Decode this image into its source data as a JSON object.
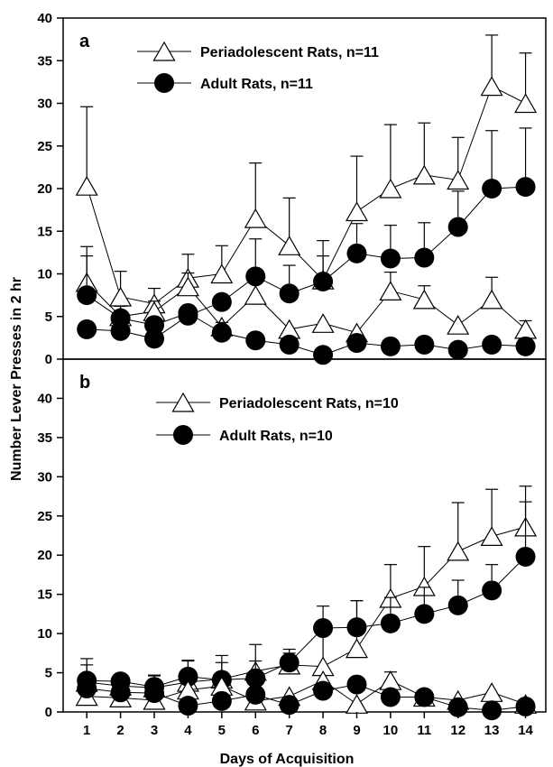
{
  "figure": {
    "y_axis_label": "Number Lever Presses in 2 hr",
    "x_axis_label": "Days of Acquisition"
  },
  "chart_data": [
    {
      "type": "line",
      "panel_label": "a",
      "x": [
        1,
        2,
        3,
        4,
        5,
        6,
        7,
        8,
        9,
        10,
        11,
        12,
        13,
        14
      ],
      "xlim": [
        0.3,
        14.6
      ],
      "ylim": [
        0,
        40
      ],
      "yticks": [
        0,
        5,
        10,
        15,
        20,
        25,
        30,
        35,
        40
      ],
      "legend_position": "top-left",
      "series": [
        {
          "name": "Periadolescent Rats, n=11",
          "marker": "open-triangle",
          "values": [
            20.3,
            7.3,
            6.5,
            9.5,
            10.0,
            16.5,
            13.3,
            9.3,
            17.3,
            20.0,
            21.6,
            21.0,
            32.0,
            30.0
          ],
          "error": [
            9.3,
            3.0,
            1.8,
            2.8,
            3.3,
            6.5,
            5.6,
            4.6,
            6.5,
            7.5,
            6.1,
            5.0,
            6.0,
            5.9
          ]
        },
        {
          "name": "Adult Rats, n=11",
          "marker": "filled-circle",
          "values": [
            3.5,
            3.3,
            2.4,
            5.1,
            6.7,
            9.7,
            7.7,
            9.1,
            12.4,
            11.8,
            11.9,
            15.5,
            20.0,
            20.2
          ],
          "error": [
            0,
            0,
            0,
            0,
            0,
            4.4,
            3.3,
            3.0,
            3.5,
            3.9,
            4.1,
            4.2,
            6.8,
            6.9
          ]
        },
        {
          "marker": "open-triangle",
          "values": [
            9.0,
            5.0,
            5.6,
            8.5,
            3.8,
            7.5,
            3.5,
            4.2,
            3.1,
            8.0,
            7.0,
            4.0,
            7.0,
            3.5
          ],
          "error": [
            4.2,
            1.2,
            1.2,
            1.6,
            0.6,
            1.8,
            0.8,
            0.7,
            0.4,
            2.2,
            1.6,
            0.7,
            2.6,
            1.0
          ]
        },
        {
          "marker": "filled-circle",
          "values": [
            7.5,
            4.8,
            4.0,
            5.4,
            3.1,
            2.2,
            1.7,
            0.5,
            1.9,
            1.5,
            1.7,
            1.1,
            1.7,
            1.5
          ],
          "error": [
            4.6,
            0,
            0,
            0,
            1.2,
            0.7,
            0.6,
            0.4,
            0.6,
            0.5,
            0.6,
            0.4,
            0.6,
            0.5
          ]
        }
      ]
    },
    {
      "type": "line",
      "panel_label": "b",
      "x": [
        1,
        2,
        3,
        4,
        5,
        6,
        7,
        8,
        9,
        10,
        11,
        12,
        13,
        14
      ],
      "xlim": [
        0.3,
        14.6
      ],
      "ylim": [
        0,
        45
      ],
      "yticks": [
        0,
        5,
        10,
        15,
        20,
        25,
        30,
        35,
        40
      ],
      "legend_position": "top-left",
      "series": [
        {
          "name": "Periadolescent Rats, n=10",
          "marker": "open-triangle",
          "values": [
            3.8,
            3.3,
            3.1,
            3.8,
            4.2,
            5.2,
            6.0,
            5.8,
            8.1,
            14.5,
            16.0,
            20.5,
            22.4,
            23.6
          ],
          "error": [
            3.0,
            1.5,
            1.5,
            2.8,
            3.0,
            3.4,
            1.5,
            4.8,
            6.1,
            4.3,
            5.1,
            6.2,
            6.0,
            5.2
          ]
        },
        {
          "name": "Adult Rats, n=10",
          "marker": "filled-circle",
          "values": [
            4.0,
            3.9,
            3.2,
            4.5,
            4.1,
            4.3,
            6.3,
            10.7,
            10.8,
            11.3,
            12.5,
            13.6,
            15.5,
            19.8
          ],
          "error": [
            2.0,
            1.1,
            1.5,
            2.0,
            2.2,
            2.2,
            1.7,
            2.8,
            3.4,
            3.3,
            3.4,
            3.2,
            3.3,
            7.0
          ]
        },
        {
          "marker": "open-triangle",
          "values": [
            2.0,
            1.8,
            1.5,
            2.8,
            3.3,
            1.4,
            2.0,
            4.0,
            1.0,
            4.0,
            1.9,
            1.5,
            2.5,
            1.0
          ],
          "error": [
            0.6,
            0.6,
            0.5,
            0.6,
            0.8,
            0.4,
            0.5,
            0.5,
            0.3,
            1.1,
            0.5,
            0.4,
            0.5,
            0.3
          ]
        },
        {
          "marker": "filled-circle",
          "values": [
            3.0,
            2.5,
            2.4,
            0.8,
            1.4,
            2.2,
            0.9,
            2.7,
            3.5,
            1.9,
            1.9,
            0.6,
            0.2,
            0.7
          ],
          "error": [
            1.1,
            1.0,
            1.0,
            0.5,
            0.6,
            0.8,
            0.4,
            0.9,
            1.1,
            0.7,
            0.6,
            0.3,
            0.2,
            0.4
          ]
        }
      ]
    }
  ]
}
